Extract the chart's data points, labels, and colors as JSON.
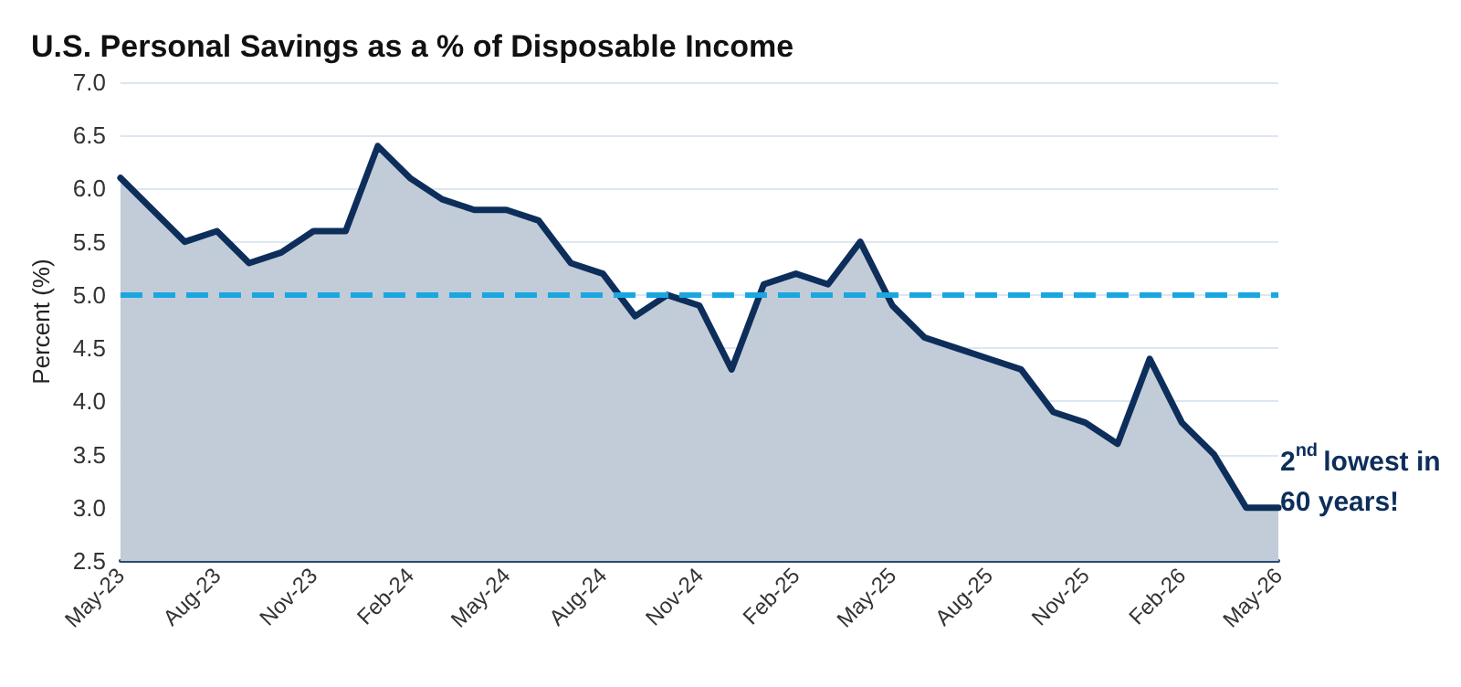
{
  "chart_data": {
    "type": "area",
    "title": "U.S. Personal Savings as a % of Disposable Income",
    "ylabel": "Percent (%)",
    "categories": [
      "May-23",
      null,
      null,
      "Aug-23",
      null,
      null,
      "Nov-23",
      null,
      null,
      "Feb-24",
      null,
      null,
      "May-24",
      null,
      null,
      "Aug-24",
      null,
      null,
      "Nov-24",
      null,
      null,
      "Feb-25",
      null,
      null,
      "May-25",
      null,
      null,
      "Aug-25",
      null,
      null,
      "Nov-25",
      null,
      null,
      "Feb-26",
      null,
      null,
      "May-26"
    ],
    "series": [
      {
        "color": "#0d2e5a",
        "values": [
          6.1,
          5.8,
          5.5,
          5.6,
          5.3,
          5.4,
          5.6,
          5.6,
          6.4,
          6.1,
          5.9,
          5.8,
          5.8,
          5.7,
          5.3,
          5.2,
          4.8,
          5.0,
          4.9,
          4.3,
          5.1,
          5.2,
          5.1,
          5.5,
          4.9,
          4.6,
          4.5,
          4.4,
          4.3,
          3.9,
          3.8,
          3.6,
          4.4,
          3.8,
          3.5,
          3.0,
          3.0
        ]
      }
    ],
    "ylim": [
      2.5,
      7.0
    ],
    "yticks": [
      2.5,
      {
        "value": 3,
        "label": "3.0"
      },
      3.5,
      {
        "value": 4,
        "label": "4.0"
      },
      4.5,
      {
        "value": 5,
        "label": "5.0"
      },
      5.5,
      {
        "value": 6,
        "label": "6.0"
      },
      6.5,
      {
        "value": 7,
        "label": "7.0"
      }
    ],
    "ref_lines": [
      {
        "axis": "y",
        "value": 5.0,
        "color": "#1aa7e0",
        "line_style": "dashed"
      }
    ],
    "annotations": [
      "2$^{nd}$ lowest in 60 years!"
    ],
    "grid": "y",
    "marker": "none",
    "line_style": "solid"
  }
}
